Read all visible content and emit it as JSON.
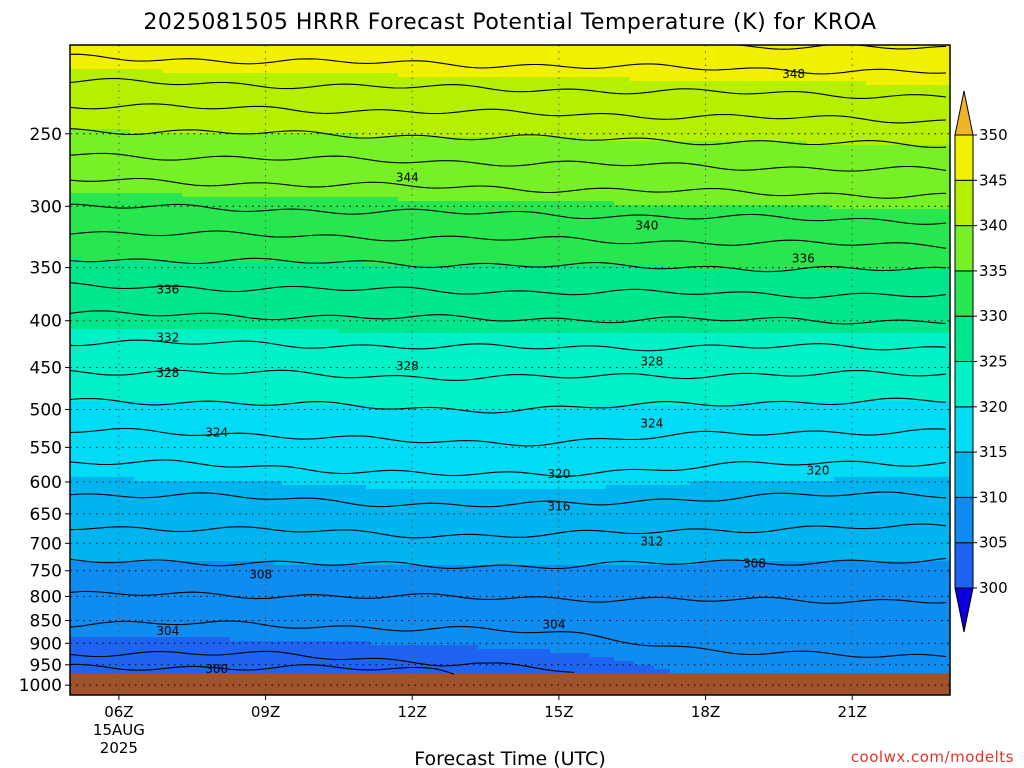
{
  "chart_data": {
    "type": "heatmap",
    "title": "2025081505 HRRR Forecast Potential Temperature (K) for KROA",
    "xlabel": "Forecast Time (UTC)",
    "ylabel": "",
    "x_ticks": [
      {
        "hour": 6,
        "label": "06Z",
        "sub": [
          "15AUG",
          "2025"
        ]
      },
      {
        "hour": 9,
        "label": "09Z"
      },
      {
        "hour": 12,
        "label": "12Z"
      },
      {
        "hour": 15,
        "label": "15Z"
      },
      {
        "hour": 18,
        "label": "18Z"
      },
      {
        "hour": 21,
        "label": "21Z"
      }
    ],
    "xlim": [
      5,
      23
    ],
    "y_ticks": [
      250,
      300,
      350,
      400,
      450,
      500,
      550,
      600,
      650,
      700,
      750,
      800,
      850,
      900,
      950,
      1000
    ],
    "y_scale": "log",
    "ylim": [
      1025,
      200
    ],
    "grid": true,
    "surface_pressure": 970,
    "colorbar": {
      "levels": [
        300,
        305,
        310,
        315,
        320,
        325,
        330,
        335,
        340,
        345,
        350
      ],
      "colors": [
        "#0a00e0",
        "#1e64f0",
        "#0f8cf0",
        "#00b4f0",
        "#00dcf5",
        "#00f0c8",
        "#00e68c",
        "#28e650",
        "#78f028",
        "#b4f000",
        "#f0f000",
        "#f0b428"
      ],
      "placement": "right",
      "extend": "both"
    },
    "contour_labels": [
      {
        "x": 7.0,
        "p": 370,
        "value": "336"
      },
      {
        "x": 20.0,
        "p": 342,
        "value": "336"
      },
      {
        "x": 19.8,
        "p": 215,
        "value": "348"
      },
      {
        "x": 11.9,
        "p": 279,
        "value": "344"
      },
      {
        "x": 16.8,
        "p": 315,
        "value": "340"
      },
      {
        "x": 7.0,
        "p": 417,
        "value": "332"
      },
      {
        "x": 7.0,
        "p": 456,
        "value": "328"
      },
      {
        "x": 11.9,
        "p": 448,
        "value": "328"
      },
      {
        "x": 16.9,
        "p": 443,
        "value": "328"
      },
      {
        "x": 8.0,
        "p": 530,
        "value": "324"
      },
      {
        "x": 16.9,
        "p": 518,
        "value": "324"
      },
      {
        "x": 15.0,
        "p": 588,
        "value": "320"
      },
      {
        "x": 20.3,
        "p": 583,
        "value": "320"
      },
      {
        "x": 15.0,
        "p": 638,
        "value": "316"
      },
      {
        "x": 16.9,
        "p": 697,
        "value": "312"
      },
      {
        "x": 8.9,
        "p": 757,
        "value": "308"
      },
      {
        "x": 19.0,
        "p": 736,
        "value": "308"
      },
      {
        "x": 7.0,
        "p": 873,
        "value": "304"
      },
      {
        "x": 14.9,
        "p": 859,
        "value": "304"
      },
      {
        "x": 8.0,
        "p": 960,
        "value": "300"
      }
    ],
    "watermark": "coolwx.com/modelts"
  }
}
